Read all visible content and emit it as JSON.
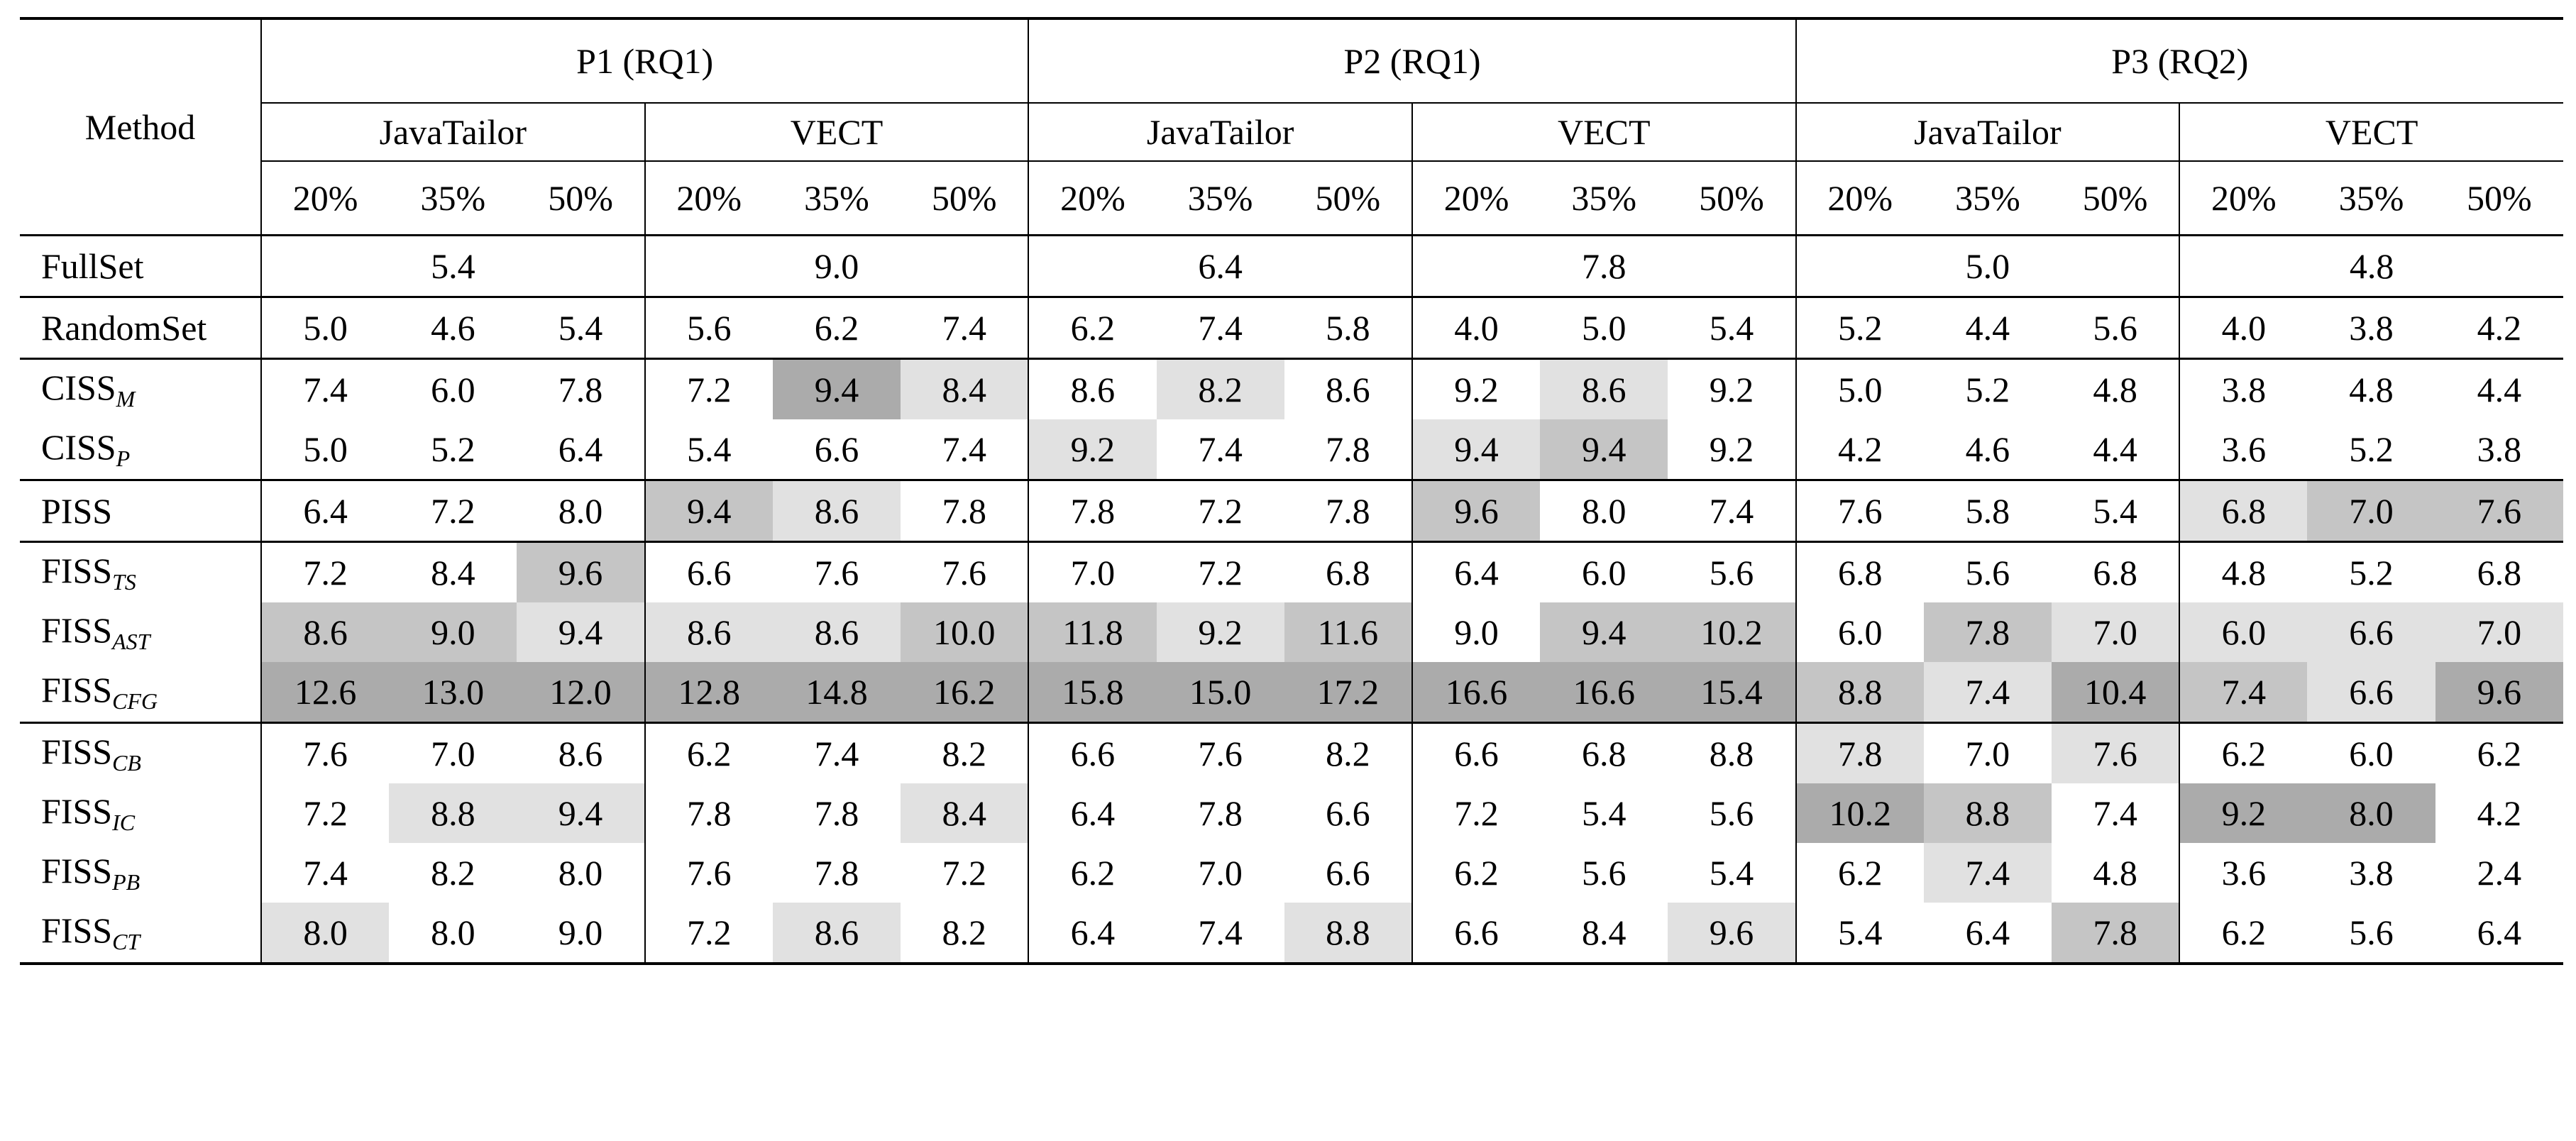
{
  "table": {
    "method_header": "Method",
    "groups": [
      "P1 (RQ1)",
      "P2 (RQ1)",
      "P3 (RQ2)"
    ],
    "datasets": [
      "JavaTailor",
      "VECT",
      "JavaTailor",
      "VECT",
      "JavaTailor",
      "VECT"
    ],
    "ratios": [
      "20%",
      "35%",
      "50%",
      "20%",
      "35%",
      "50%",
      "20%",
      "35%",
      "50%",
      "20%",
      "35%",
      "50%",
      "20%",
      "35%",
      "50%",
      "20%",
      "35%",
      "50%"
    ],
    "fullset": {
      "label": "FullSet",
      "values": [
        "5.4",
        "9.0",
        "6.4",
        "7.8",
        "5.0",
        "4.8"
      ]
    },
    "blocks": [
      [
        {
          "base": "RandomSet",
          "sub": "",
          "values": [
            "5.0",
            "4.6",
            "5.4",
            "5.6",
            "6.2",
            "7.4",
            "6.2",
            "7.4",
            "5.8",
            "4.0",
            "5.0",
            "5.4",
            "5.2",
            "4.4",
            "5.6",
            "4.0",
            "3.8",
            "4.2"
          ],
          "bold": [
            0,
            0,
            0,
            0,
            0,
            0,
            0,
            1,
            0,
            0,
            0,
            0,
            1,
            0,
            1,
            0,
            0,
            0
          ],
          "shade": [
            0,
            0,
            0,
            0,
            0,
            0,
            0,
            0,
            0,
            0,
            0,
            0,
            0,
            0,
            0,
            0,
            0,
            0
          ]
        }
      ],
      [
        {
          "base": "CISS",
          "sub": "M",
          "values": [
            "7.4",
            "6.0",
            "7.8",
            "7.2",
            "9.4",
            "8.4",
            "8.6",
            "8.2",
            "8.6",
            "9.2",
            "8.6",
            "9.2",
            "5.0",
            "5.2",
            "4.8",
            "3.8",
            "4.8",
            "4.4"
          ],
          "bold": [
            1,
            1,
            1,
            0,
            1,
            0,
            1,
            1,
            1,
            1,
            1,
            1,
            0,
            1,
            0,
            0,
            0,
            0
          ],
          "shade": [
            0,
            0,
            0,
            0,
            3,
            1,
            0,
            1,
            0,
            0,
            1,
            0,
            0,
            0,
            0,
            0,
            0,
            0
          ]
        },
        {
          "base": "CISS",
          "sub": "P",
          "values": [
            "5.0",
            "5.2",
            "6.4",
            "5.4",
            "6.6",
            "7.4",
            "9.2",
            "7.4",
            "7.8",
            "9.4",
            "9.4",
            "9.2",
            "4.2",
            "4.6",
            "4.4",
            "3.6",
            "5.2",
            "3.8"
          ],
          "bold": [
            0,
            0,
            1,
            0,
            0,
            0,
            1,
            1,
            1,
            1,
            1,
            1,
            0,
            0,
            0,
            0,
            1,
            0
          ],
          "shade": [
            0,
            0,
            0,
            0,
            0,
            0,
            1,
            0,
            0,
            1,
            2,
            0,
            0,
            0,
            0,
            0,
            0,
            0
          ]
        }
      ],
      [
        {
          "base": "PISS",
          "sub": "",
          "values": [
            "6.4",
            "7.2",
            "8.0",
            "9.4",
            "8.6",
            "7.8",
            "7.8",
            "7.2",
            "7.8",
            "9.6",
            "8.0",
            "7.4",
            "7.6",
            "5.8",
            "5.4",
            "6.8",
            "7.0",
            "7.6"
          ],
          "bold": [
            1,
            1,
            1,
            1,
            0,
            0,
            1,
            1,
            1,
            1,
            1,
            0,
            1,
            1,
            1,
            1,
            1,
            1
          ],
          "shade": [
            0,
            0,
            0,
            2,
            1,
            0,
            0,
            0,
            0,
            2,
            0,
            0,
            0,
            0,
            0,
            1,
            2,
            2
          ]
        }
      ],
      [
        {
          "base": "FISS",
          "sub": "TS",
          "values": [
            "7.2",
            "8.4",
            "9.6",
            "6.6",
            "7.6",
            "7.6",
            "7.0",
            "7.2",
            "6.8",
            "6.4",
            "6.0",
            "5.6",
            "6.8",
            "5.6",
            "6.8",
            "4.8",
            "5.2",
            "6.8"
          ],
          "bold": [
            1,
            1,
            1,
            0,
            0,
            0,
            1,
            1,
            1,
            0,
            0,
            0,
            1,
            1,
            1,
            0,
            1,
            1
          ],
          "shade": [
            0,
            0,
            2,
            0,
            0,
            0,
            0,
            0,
            0,
            0,
            0,
            0,
            0,
            0,
            0,
            0,
            0,
            0
          ]
        },
        {
          "base": "FISS",
          "sub": "AST",
          "values": [
            "8.6",
            "9.0",
            "9.4",
            "8.6",
            "8.6",
            "10.0",
            "11.8",
            "9.2",
            "11.6",
            "9.0",
            "9.4",
            "10.2",
            "6.0",
            "7.8",
            "7.0",
            "6.0",
            "6.6",
            "7.0"
          ],
          "bold": [
            1,
            1,
            1,
            0,
            0,
            1,
            1,
            1,
            1,
            1,
            1,
            1,
            1,
            1,
            1,
            1,
            1,
            1
          ],
          "shade": [
            2,
            2,
            1,
            1,
            1,
            2,
            2,
            1,
            2,
            0,
            2,
            2,
            0,
            2,
            1,
            1,
            1,
            1
          ]
        },
        {
          "base": "FISS",
          "sub": "CFG",
          "values": [
            "12.6",
            "13.0",
            "12.0",
            "12.8",
            "14.8",
            "16.2",
            "15.8",
            "15.0",
            "17.2",
            "16.6",
            "16.6",
            "15.4",
            "8.8",
            "7.4",
            "10.4",
            "7.4",
            "6.6",
            "9.6"
          ],
          "bold": [
            1,
            1,
            1,
            1,
            1,
            1,
            1,
            1,
            1,
            1,
            1,
            1,
            1,
            0,
            1,
            1,
            0,
            1
          ],
          "shade": [
            3,
            3,
            3,
            3,
            3,
            3,
            3,
            3,
            3,
            3,
            3,
            3,
            2,
            1,
            3,
            2,
            1,
            3
          ]
        }
      ],
      [
        {
          "base": "FISS",
          "sub": "CB",
          "values": [
            "7.6",
            "7.0",
            "8.6",
            "6.2",
            "7.4",
            "8.2",
            "6.6",
            "7.6",
            "8.2",
            "6.6",
            "6.8",
            "8.8",
            "7.8",
            "7.0",
            "7.6",
            "6.2",
            "6.0",
            "6.2"
          ],
          "bold": [
            1,
            1,
            1,
            0,
            0,
            0,
            1,
            1,
            1,
            0,
            0,
            1,
            1,
            1,
            1,
            1,
            1,
            1
          ],
          "shade": [
            0,
            0,
            0,
            0,
            0,
            0,
            0,
            0,
            0,
            0,
            0,
            0,
            1,
            0,
            1,
            0,
            0,
            0
          ]
        },
        {
          "base": "FISS",
          "sub": "IC",
          "values": [
            "7.2",
            "8.8",
            "9.4",
            "7.8",
            "7.8",
            "8.4",
            "6.4",
            "7.8",
            "6.6",
            "7.2",
            "5.4",
            "5.6",
            "10.2",
            "8.8",
            "7.4",
            "9.2",
            "8.0",
            "4.2"
          ],
          "bold": [
            1,
            1,
            1,
            0,
            0,
            0,
            0,
            1,
            1,
            0,
            0,
            0,
            1,
            1,
            1,
            1,
            1,
            0
          ],
          "shade": [
            0,
            1,
            1,
            0,
            0,
            1,
            0,
            0,
            0,
            0,
            0,
            0,
            3,
            2,
            0,
            3,
            3,
            0
          ]
        },
        {
          "base": "FISS",
          "sub": "PB",
          "values": [
            "7.4",
            "8.2",
            "8.0",
            "7.6",
            "7.8",
            "7.2",
            "6.2",
            "7.0",
            "6.6",
            "6.2",
            "5.6",
            "5.4",
            "6.2",
            "7.4",
            "4.8",
            "3.6",
            "3.8",
            "2.4"
          ],
          "bold": [
            1,
            1,
            1,
            0,
            0,
            0,
            0,
            1,
            1,
            0,
            0,
            0,
            1,
            1,
            0,
            0,
            0,
            0
          ],
          "shade": [
            0,
            0,
            0,
            0,
            0,
            0,
            0,
            0,
            0,
            0,
            0,
            0,
            0,
            1,
            0,
            0,
            0,
            0
          ]
        },
        {
          "base": "FISS",
          "sub": "CT",
          "values": [
            "8.0",
            "8.0",
            "9.0",
            "7.2",
            "8.6",
            "8.2",
            "6.4",
            "7.4",
            "8.8",
            "6.6",
            "8.4",
            "9.6",
            "5.4",
            "6.4",
            "7.8",
            "6.2",
            "5.6",
            "6.4"
          ],
          "bold": [
            1,
            1,
            1,
            0,
            0,
            0,
            0,
            1,
            1,
            0,
            1,
            1,
            1,
            1,
            1,
            1,
            1,
            1
          ],
          "shade": [
            1,
            0,
            0,
            0,
            1,
            0,
            0,
            0,
            1,
            0,
            0,
            1,
            0,
            0,
            2,
            0,
            0,
            0
          ]
        }
      ]
    ],
    "shade_colors": [
      "#ffffff",
      "#e1e1e1",
      "#c5c5c5",
      "#ababab"
    ]
  }
}
